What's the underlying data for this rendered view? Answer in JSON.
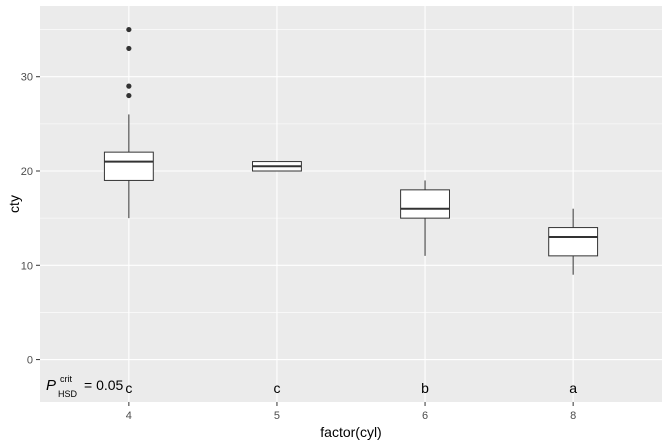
{
  "chart_data": {
    "type": "boxplot",
    "xlabel": "factor(cyl)",
    "ylabel": "cty",
    "categories": [
      "4",
      "5",
      "6",
      "8"
    ],
    "ylim": [
      -4.5,
      37.5
    ],
    "yticks": [
      0,
      10,
      20,
      30
    ],
    "grid": true,
    "boxes": [
      {
        "category": "4",
        "min": 15,
        "q1": 19,
        "median": 21,
        "q3": 22,
        "max": 26,
        "outliers": [
          28,
          29,
          33,
          35
        ]
      },
      {
        "category": "5",
        "min": 20,
        "q1": 20,
        "median": 20.5,
        "q3": 21,
        "max": 21,
        "outliers": []
      },
      {
        "category": "6",
        "min": 11,
        "q1": 15,
        "median": 16,
        "q3": 18,
        "max": 19,
        "outliers": []
      },
      {
        "category": "8",
        "min": 9,
        "q1": 11,
        "median": 13,
        "q3": 14,
        "max": 16,
        "outliers": []
      }
    ],
    "group_letters": [
      "c",
      "c",
      "b",
      "a"
    ],
    "group_letter_y": -3,
    "annotation": {
      "P": "P",
      "sup": "crit",
      "sub": "HSD",
      "rest": "= 0.05"
    },
    "colors": {
      "panel": "#ebebeb",
      "grid": "#ffffff",
      "box_fill": "#ffffff",
      "box_line": "#333333",
      "outlier": "#333333"
    }
  }
}
